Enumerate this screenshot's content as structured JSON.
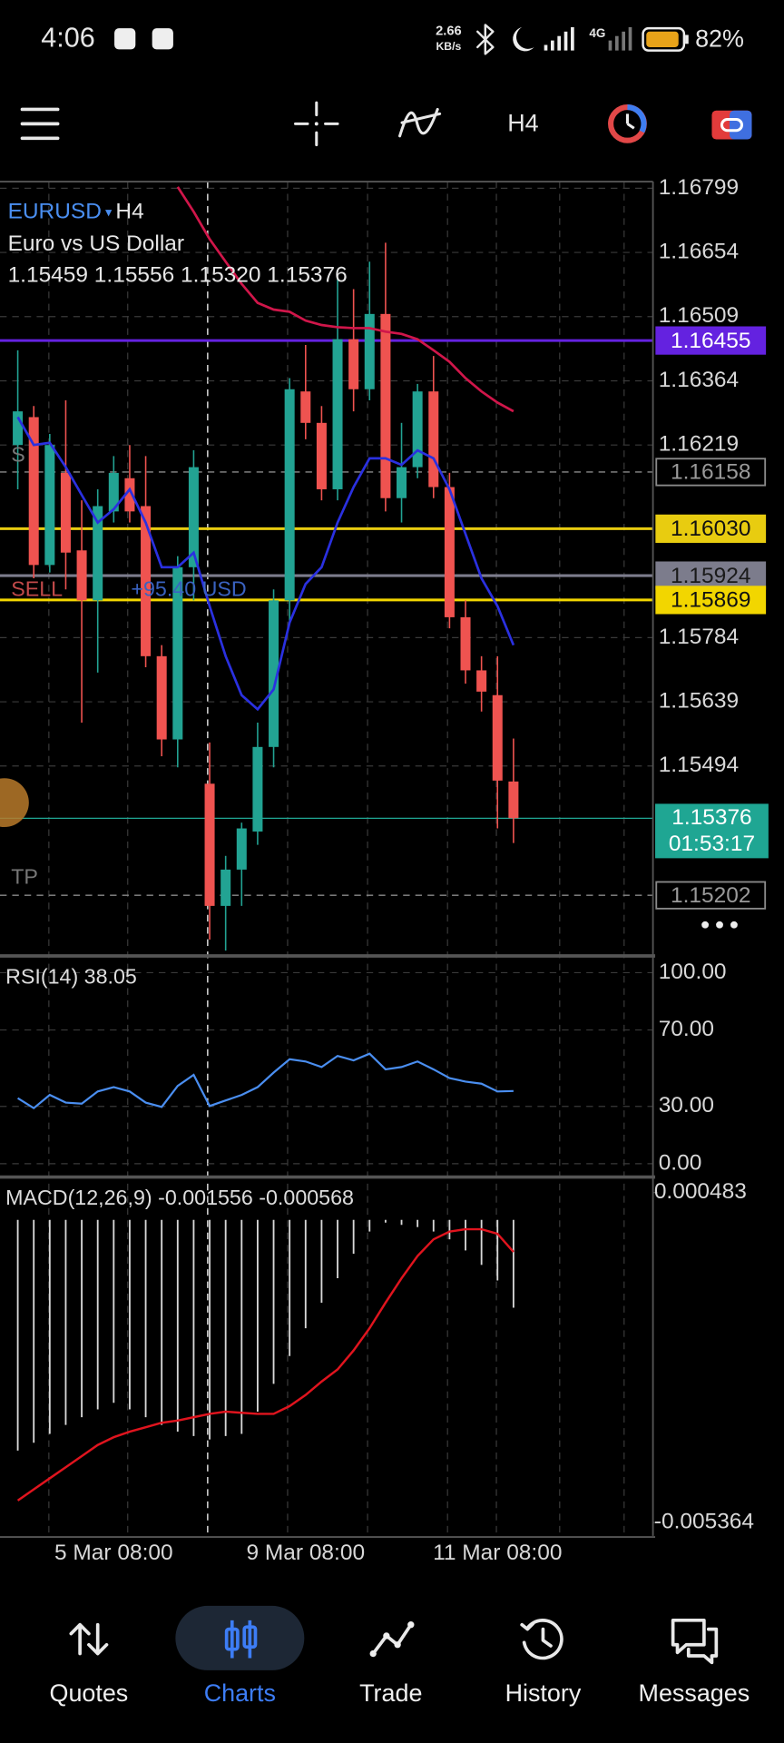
{
  "status_bar": {
    "time": "4:06",
    "speed": "2.66",
    "speed_unit": "KB/s",
    "network": "4G",
    "battery": "82%"
  },
  "toolbar": {
    "timeframe": "H4"
  },
  "chart_data": [
    {
      "type": "candlestick",
      "symbol": "EURUSD",
      "timeframe": "H4",
      "description": "Euro vs US Dollar",
      "ohlc_text": "1.15459 1.15556 1.15320 1.15376",
      "categories": [
        null,
        null,
        null,
        null,
        null,
        null,
        "5 Mar 08:00",
        null,
        null,
        null,
        null,
        null,
        null,
        null,
        null,
        null,
        null,
        null,
        "9 Mar 08:00",
        null,
        null,
        null,
        null,
        null,
        null,
        null,
        null,
        null,
        null,
        null,
        "11 Mar 08:00",
        null
      ],
      "open": [
        1.16219,
        1.16282,
        1.15948,
        1.16156,
        1.15981,
        1.15868,
        1.16069,
        1.16144,
        1.16081,
        1.15742,
        1.15554,
        1.15943,
        1.15454,
        1.15178,
        1.1526,
        1.15346,
        1.15537,
        1.15868,
        1.1634,
        1.16269,
        1.16119,
        1.16458,
        1.16345,
        1.16515,
        1.16099,
        1.16169,
        1.1634,
        1.16124,
        1.1583,
        1.1571,
        1.15654,
        1.15459
      ],
      "high": [
        1.16433,
        1.16307,
        1.16244,
        1.1632,
        1.16094,
        1.16119,
        1.16194,
        1.16219,
        1.16194,
        1.15767,
        1.15968,
        1.16207,
        1.15547,
        1.15291,
        1.15366,
        1.15592,
        1.15893,
        1.1637,
        1.16445,
        1.16307,
        1.16596,
        1.16571,
        1.16633,
        1.16676,
        1.16269,
        1.16357,
        1.1642,
        1.16156,
        1.15868,
        1.15742,
        1.15742,
        1.15556
      ],
      "low": [
        1.16119,
        1.15918,
        1.15931,
        1.15893,
        1.15592,
        1.15705,
        1.16044,
        1.16044,
        1.15717,
        1.15516,
        1.15491,
        1.15868,
        1.15102,
        1.15077,
        1.15178,
        1.15316,
        1.15491,
        1.15818,
        1.16232,
        1.16094,
        1.16094,
        1.16295,
        1.1632,
        1.16069,
        1.16044,
        1.16144,
        1.16099,
        1.15805,
        1.1568,
        1.15617,
        1.15353,
        1.1532
      ],
      "close": [
        1.16295,
        1.15948,
        1.16219,
        1.15976,
        1.15868,
        1.16081,
        1.16156,
        1.16069,
        1.15742,
        1.15554,
        1.15943,
        1.16169,
        1.15178,
        1.1526,
        1.15353,
        1.15537,
        1.15868,
        1.16345,
        1.16269,
        1.16119,
        1.16458,
        1.16345,
        1.16515,
        1.16099,
        1.16169,
        1.1634,
        1.16124,
        1.1583,
        1.1571,
        1.15662,
        1.15461,
        1.15376
      ],
      "up_color": "#22a393",
      "down_color": "#ef5350",
      "lines": [
        {
          "color": "#d0164a",
          "values": [
            null,
            null,
            null,
            null,
            null,
            null,
            null,
            null,
            null,
            null,
            1.16802,
            1.16746,
            1.16684,
            1.16633,
            1.16583,
            1.1654,
            1.16525,
            1.1652,
            1.165,
            1.1649,
            1.16485,
            1.16483,
            1.16483,
            1.16475,
            1.1647,
            1.16458,
            1.16433,
            1.16407,
            1.1637,
            1.1634,
            1.16315,
            1.16295
          ]
        },
        {
          "color": "#2a30e0",
          "values": [
            1.16282,
            1.16219,
            1.16224,
            1.16169,
            1.16106,
            1.16044,
            1.16074,
            1.16119,
            1.16044,
            1.15943,
            1.15943,
            1.15976,
            1.15855,
            1.15742,
            1.15654,
            1.15622,
            1.15667,
            1.15818,
            1.15905,
            1.15943,
            1.16044,
            1.16124,
            1.16189,
            1.16189,
            1.16174,
            1.16207,
            1.16189,
            1.16119,
            1.16018,
            1.15918,
            1.15855,
            1.15767
          ]
        }
      ],
      "ylim": [
        1.1507,
        1.16814
      ],
      "yticks": [
        1.16799,
        1.16654,
        1.16509,
        1.16364,
        1.16219,
        1.15784,
        1.15639,
        1.15494
      ],
      "grid": true,
      "price_levels": [
        {
          "value": 1.16455,
          "color": "#6422e0",
          "style": "solid",
          "box": "filled",
          "text_color": "#ffffff"
        },
        {
          "value": 1.16158,
          "color": "#8a8a8a",
          "style": "dashed",
          "box": "outline",
          "text_color": "#9a9a9a"
        },
        {
          "value": 1.1603,
          "label": "1.16030",
          "color": "#e8cc10",
          "style": "solid",
          "box": "filled",
          "text_color": "#111111"
        },
        {
          "value": 1.15924,
          "color": "#7c7c8c",
          "style": "solid",
          "box": "filled",
          "text_color": "#1a1a1a"
        },
        {
          "value": 1.15869,
          "color": "#f2d600",
          "style": "solid",
          "box": "filled",
          "text_color": "#111111"
        },
        {
          "value": 1.15202,
          "color": "#8a8a8a",
          "style": "dashed",
          "box": "outline",
          "text_color": "#9a9a9a"
        }
      ],
      "current": {
        "value": 1.15376,
        "countdown": "01:53:17",
        "color": "#1fa693"
      },
      "annotations": {
        "sl": "S",
        "sell": "SELL",
        "profit": "+95.40 USD",
        "tp": "TP"
      }
    },
    {
      "type": "line",
      "title": "RSI(14) 38.05",
      "color": "#4a8ef0",
      "values": [
        34.3,
        29.1,
        36.0,
        32.0,
        31.4,
        37.8,
        40.1,
        37.8,
        32.0,
        29.7,
        40.7,
        46.5,
        30.2,
        33.1,
        36.0,
        40.1,
        47.7,
        54.7,
        53.5,
        50.6,
        56.4,
        54.1,
        57.6,
        49.4,
        50.6,
        53.5,
        49.4,
        44.8,
        43.0,
        41.9,
        37.8,
        38.05
      ],
      "ylim": [
        -6.4,
        107.6
      ],
      "yticks": [
        {
          "value": 100,
          "label": "100.00"
        },
        {
          "value": 70,
          "label": "70.00"
        },
        {
          "value": 30,
          "label": "30.00"
        },
        {
          "value": 0,
          "label": "0.00"
        }
      ]
    },
    {
      "type": "macd",
      "title": "MACD(12,26,9) -0.001556 -0.000568",
      "histogram_color": "#d8d8d8",
      "signal_color": "#e0141e",
      "histogram": [
        -0.004088,
        -0.00395,
        -0.003792,
        -0.003635,
        -0.003497,
        -0.003359,
        -0.003241,
        -0.003359,
        -0.003497,
        -0.003635,
        -0.003753,
        -0.003832,
        -0.003891,
        -0.003832,
        -0.003792,
        -0.003398,
        -0.002906,
        -0.002413,
        -0.001921,
        -0.001468,
        -0.001034,
        -0.000601,
        -0.000207,
        -4.9e-05,
        -8.9e-05,
        -0.000128,
        -0.000207,
        -0.000345,
        -0.000542,
        -0.000798,
        -0.001074,
        -0.001556
      ],
      "signal": [
        -0.004974,
        -0.004777,
        -0.00458,
        -0.004383,
        -0.004186,
        -0.003989,
        -0.003851,
        -0.003753,
        -0.003674,
        -0.003595,
        -0.003556,
        -0.003497,
        -0.003438,
        -0.003398,
        -0.003418,
        -0.003438,
        -0.003438,
        -0.0033,
        -0.003103,
        -0.002866,
        -0.00265,
        -0.002315,
        -0.001921,
        -0.001468,
        -0.001034,
        -0.00064,
        -0.000345,
        -0.000207,
        -0.000167,
        -0.000167,
        -0.000246,
        -0.000568
      ],
      "ylim": [
        -0.0056,
        0.0007
      ],
      "yticks": [
        0.000483,
        -0.005364
      ]
    }
  ],
  "nav": [
    "Quotes",
    "Charts",
    "Trade",
    "History",
    "Messages"
  ]
}
